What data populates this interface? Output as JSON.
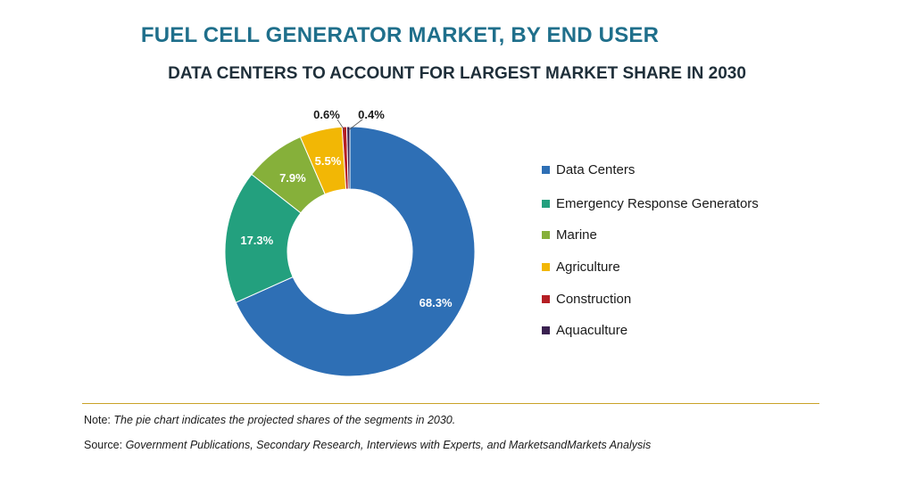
{
  "title": "FUEL CELL GENERATOR MARKET, BY END USER",
  "subtitle": "DATA CENTERS TO ACCOUNT FOR LARGEST MARKET SHARE IN 2030",
  "chart_data": {
    "type": "pie",
    "donut": true,
    "title": "FUEL CELL GENERATOR MARKET, BY END USER",
    "subtitle": "DATA CENTERS TO ACCOUNT FOR LARGEST MARKET SHARE IN 2030",
    "categories": [
      "Data Centers",
      "Emergency Response Generators",
      "Marine",
      "Agriculture",
      "Construction",
      "Aquaculture"
    ],
    "values": [
      68.3,
      17.3,
      7.9,
      5.5,
      0.6,
      0.4
    ],
    "labels": [
      "68.3%",
      "17.3%",
      "7.9%",
      "5.5%",
      "0.6%",
      "0.4%"
    ],
    "colors": [
      "#2e6fb5",
      "#23a07e",
      "#86b03a",
      "#f2b705",
      "#b51e24",
      "#3a2150"
    ],
    "legend_position": "right"
  },
  "legend": {
    "items": [
      {
        "label": "Data Centers",
        "color": "#2e6fb5"
      },
      {
        "label": "Emergency Response Generators",
        "color": "#23a07e"
      },
      {
        "label": "Marine",
        "color": "#86b03a"
      },
      {
        "label": "Agriculture",
        "color": "#f2b705"
      },
      {
        "label": "Construction",
        "color": "#b51e24"
      },
      {
        "label": "Aquaculture",
        "color": "#3a2150"
      }
    ]
  },
  "footer": {
    "note_prefix": "Note:",
    "note_text": " The pie chart indicates the projected shares of the segments in 2030.",
    "source_prefix": "Source:",
    "source_text": " Government Publications, Secondary Research, Interviews with Experts, and MarketsandMarkets Analysis"
  }
}
